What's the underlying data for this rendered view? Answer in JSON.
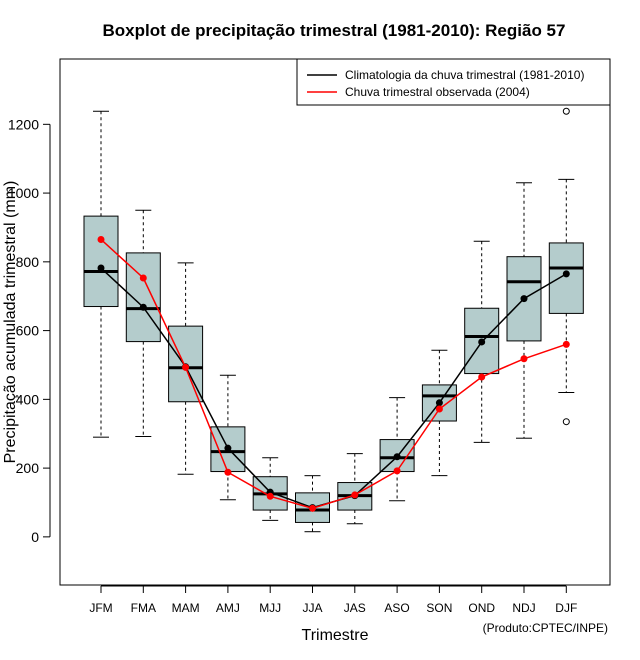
{
  "chart_data": {
    "type": "boxplot",
    "title": "Boxplot de precipitação trimestral (1981-2010): Região 57",
    "xlabel": "Trimestre",
    "ylabel": "Precipitação acumulada trimestral (mm)",
    "credit": "(Produto:CPTEC/INPE)",
    "ylim": [
      -140,
      1390
    ],
    "yticks": [
      0,
      200,
      400,
      600,
      800,
      1000,
      1200
    ],
    "categories": [
      "JFM",
      "FMA",
      "MAM",
      "AMJ",
      "MJJ",
      "JJA",
      "JAS",
      "ASO",
      "SON",
      "OND",
      "NDJ",
      "DJF"
    ],
    "boxes": [
      {
        "min": 290,
        "q1": 670,
        "median": 772,
        "q3": 933,
        "max": 1238,
        "outliers": []
      },
      {
        "min": 292,
        "q1": 568,
        "median": 664,
        "q3": 826,
        "max": 950,
        "outliers": []
      },
      {
        "min": 182,
        "q1": 393,
        "median": 492,
        "q3": 613,
        "max": 797,
        "outliers": []
      },
      {
        "min": 108,
        "q1": 190,
        "median": 248,
        "q3": 320,
        "max": 470,
        "outliers": []
      },
      {
        "min": 48,
        "q1": 78,
        "median": 125,
        "q3": 175,
        "max": 230,
        "outliers": []
      },
      {
        "min": 15,
        "q1": 42,
        "median": 78,
        "q3": 128,
        "max": 178,
        "outliers": []
      },
      {
        "min": 38,
        "q1": 78,
        "median": 120,
        "q3": 158,
        "max": 242,
        "outliers": []
      },
      {
        "min": 105,
        "q1": 190,
        "median": 230,
        "q3": 283,
        "max": 405,
        "outliers": []
      },
      {
        "min": 178,
        "q1": 337,
        "median": 410,
        "q3": 442,
        "max": 543,
        "outliers": []
      },
      {
        "min": 275,
        "q1": 475,
        "median": 583,
        "q3": 665,
        "max": 860,
        "outliers": []
      },
      {
        "min": 287,
        "q1": 570,
        "median": 742,
        "q3": 815,
        "max": 1030,
        "outliers": []
      },
      {
        "min": 420,
        "q1": 650,
        "median": 782,
        "q3": 855,
        "max": 1040,
        "outliers": [
          1238,
          335
        ]
      }
    ],
    "series": [
      {
        "name": "Climatologia da chuva trimestral (1981-2010)",
        "color": "#000000",
        "values": [
          782,
          668,
          495,
          258,
          130,
          85,
          120,
          233,
          390,
          567,
          693,
          765
        ]
      },
      {
        "name": "Chuva trimestral observada (2004)",
        "color": "#ff0000",
        "values": [
          865,
          753,
          493,
          188,
          118,
          83,
          122,
          192,
          372,
          465,
          518,
          560
        ]
      }
    ],
    "box_fill": "#b4cccc",
    "legend_position": "top-right"
  }
}
